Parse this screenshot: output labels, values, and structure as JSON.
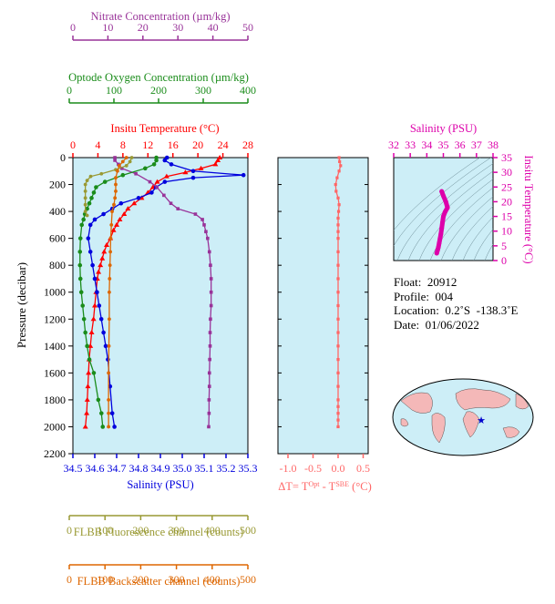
{
  "colors": {
    "nitrate": "#993399",
    "oxygen": "#1a8c1a",
    "temperature": "#ff0000",
    "salinity": "#0000dd",
    "fluorescence": "#999933",
    "backscatter": "#dd6600",
    "delta_t": "#ff6666",
    "ts_salinity": "#dd00aa",
    "panel_bg": "#cdeef7"
  },
  "chart_data": [
    {
      "type": "line",
      "title": "",
      "ylabel": "Pressure (decibar)",
      "y_ticks": [
        "0",
        "200",
        "400",
        "600",
        "800",
        "1000",
        "1200",
        "1400",
        "1600",
        "1800",
        "2000",
        "2200"
      ],
      "ylim": [
        2200,
        0
      ],
      "axes": [
        {
          "key": "nitrate",
          "label": "Nitrate Concentration (µm/kg)",
          "range": [
            0,
            50
          ],
          "ticks": [
            "0",
            "10",
            "20",
            "30",
            "40",
            "50"
          ]
        },
        {
          "key": "oxygen",
          "label": "Optode Oxygen Concentration (µm/kg)",
          "range": [
            0,
            400
          ],
          "ticks": [
            "0",
            "100",
            "200",
            "300",
            "400"
          ]
        },
        {
          "key": "temperature",
          "label": "Insitu Temperature (°C)",
          "range": [
            0,
            28
          ],
          "ticks": [
            "0",
            "4",
            "8",
            "12",
            "16",
            "20",
            "24",
            "28"
          ]
        },
        {
          "key": "salinity",
          "label": "Salinity (PSU)",
          "range": [
            34.5,
            35.3
          ],
          "ticks": [
            "34.5",
            "34.6",
            "34.7",
            "34.8",
            "34.9",
            "35.0",
            "35.1",
            "35.2",
            "35.3"
          ]
        },
        {
          "key": "fluorescence",
          "label": "FLBB Fluorescence channel (counts)",
          "range": [
            0,
            500
          ],
          "ticks": [
            "0",
            "100",
            "200",
            "300",
            "400",
            "500"
          ]
        },
        {
          "key": "backscatter",
          "label": "FLBB Backscatter channel (counts)",
          "range": [
            0,
            500
          ],
          "ticks": [
            "0",
            "100",
            "200",
            "300",
            "400",
            "500"
          ]
        }
      ],
      "series": [
        {
          "key": "temperature",
          "x": [
            23.5,
            23.2,
            22.8,
            20.5,
            18.0,
            15.0,
            13.5,
            12.8,
            12.0,
            11.0,
            9.8,
            8.8,
            8.2,
            7.5,
            7.0,
            6.5,
            6.0,
            5.4,
            5.0,
            4.7,
            4.4,
            4.1,
            3.9,
            3.7,
            3.5,
            3.3,
            3.0,
            2.8,
            2.6,
            2.5,
            2.4,
            2.3,
            2.2,
            2.0
          ],
          "y": [
            0,
            20,
            50,
            80,
            110,
            140,
            180,
            220,
            260,
            300,
            340,
            380,
            420,
            460,
            500,
            540,
            600,
            650,
            700,
            750,
            800,
            850,
            900,
            1000,
            1100,
            1200,
            1300,
            1400,
            1500,
            1600,
            1700,
            1800,
            1900,
            2000
          ]
        },
        {
          "key": "salinity",
          "x": [
            34.93,
            34.92,
            34.95,
            35.05,
            35.28,
            35.05,
            34.92,
            34.88,
            34.86,
            34.8,
            34.72,
            34.68,
            34.64,
            34.6,
            34.58,
            34.57,
            34.58,
            34.59,
            34.6,
            34.61,
            34.62,
            34.63,
            34.64,
            34.65,
            34.66,
            34.67,
            34.68,
            34.69
          ],
          "y": [
            0,
            20,
            50,
            100,
            130,
            150,
            180,
            220,
            260,
            300,
            340,
            380,
            420,
            460,
            500,
            600,
            700,
            800,
            900,
            1000,
            1100,
            1200,
            1300,
            1400,
            1500,
            1700,
            1900,
            2000
          ]
        },
        {
          "key": "nitrate",
          "x": [
            12,
            12,
            13,
            14,
            18,
            22,
            24,
            26,
            28,
            30,
            35,
            37,
            37.5,
            38,
            38.5,
            39,
            39.3,
            39.5,
            39.5,
            39.5,
            39.3,
            39.2,
            39.2,
            39.1,
            39.0,
            39.0,
            38.9,
            38.9,
            38.8
          ],
          "y": [
            0,
            20,
            50,
            80,
            120,
            180,
            220,
            280,
            340,
            380,
            420,
            460,
            500,
            550,
            600,
            700,
            800,
            900,
            1000,
            1100,
            1200,
            1300,
            1400,
            1500,
            1600,
            1700,
            1800,
            1900,
            2000
          ]
        },
        {
          "key": "oxygen",
          "x": [
            195,
            195,
            190,
            170,
            120,
            80,
            60,
            55,
            50,
            45,
            40,
            35,
            32,
            28,
            25,
            24,
            24,
            25,
            27,
            30,
            33,
            36,
            40,
            45,
            55,
            65,
            72,
            75
          ],
          "y": [
            0,
            20,
            50,
            80,
            130,
            180,
            220,
            260,
            300,
            340,
            380,
            420,
            460,
            500,
            600,
            700,
            800,
            900,
            1000,
            1100,
            1200,
            1300,
            1400,
            1500,
            1600,
            1800,
            1900,
            2000
          ]
        },
        {
          "key": "fluorescence",
          "x": [
            175,
            170,
            160,
            130,
            90,
            60,
            50,
            45,
            45,
            45,
            45,
            45,
            50
          ],
          "y": [
            0,
            30,
            60,
            90,
            120,
            140,
            170,
            200,
            250,
            300,
            350,
            400,
            430
          ]
        },
        {
          "key": "backscatter",
          "x": [
            160,
            150,
            140,
            135,
            130,
            130,
            130,
            128,
            125,
            120,
            118,
            116,
            115,
            114,
            113,
            112,
            112,
            111,
            110,
            110,
            110,
            110
          ],
          "y": [
            0,
            30,
            60,
            100,
            150,
            200,
            250,
            300,
            350,
            400,
            500,
            600,
            700,
            800,
            900,
            1000,
            1200,
            1400,
            1600,
            1800,
            1900,
            2000
          ]
        }
      ]
    },
    {
      "type": "line",
      "title": "",
      "xlabel": "ΔT= T^Opt - T^SBE (°C)",
      "x_ticks": [
        "-1.0",
        "-0.5",
        "0.0",
        "0.5"
      ],
      "xlim": [
        -1.2,
        0.6
      ],
      "ylim": [
        2200,
        0
      ],
      "series": [
        {
          "key": "delta_t",
          "x": [
            0.02,
            0.03,
            0.05,
            0.02,
            -0.02,
            -0.05,
            -0.04,
            0.0,
            0.02,
            0.01,
            0.0,
            0.0,
            0.0,
            0.0,
            0.0,
            0.0,
            0.0,
            0.0,
            0.0,
            0.0,
            0.0,
            0.0,
            0.0,
            0.0,
            0.0,
            0.0,
            0.0,
            0.0,
            0.0,
            0.0
          ],
          "y": [
            0,
            30,
            60,
            100,
            150,
            200,
            250,
            300,
            350,
            400,
            450,
            500,
            550,
            600,
            700,
            800,
            900,
            1000,
            1100,
            1200,
            1300,
            1400,
            1500,
            1600,
            1700,
            1800,
            1850,
            1900,
            1950,
            2000
          ]
        }
      ]
    },
    {
      "type": "line",
      "title": "",
      "xlabel": "Salinity (PSU)",
      "ylabel": "Insitu Temperature (°C)",
      "x_ticks": [
        "32",
        "33",
        "34",
        "35",
        "36",
        "37",
        "38"
      ],
      "y_ticks": [
        "0",
        "5",
        "10",
        "15",
        "20",
        "25",
        "30",
        "35"
      ],
      "xlim": [
        32,
        38
      ],
      "ylim": [
        0,
        35
      ],
      "series": [
        {
          "key": "ts_salinity",
          "x": [
            34.9,
            35.0,
            35.15,
            35.25,
            35.1,
            35.0,
            34.95,
            34.9,
            34.85,
            34.8,
            34.75,
            34.7,
            34.65,
            34.6
          ],
          "y": [
            23.5,
            22,
            20,
            18,
            16.5,
            15,
            13,
            11,
            9,
            7.5,
            6,
            4.5,
            3.5,
            2.5
          ]
        }
      ]
    }
  ],
  "float_info": {
    "float": "Float:  20912",
    "profile": "Profile:  004",
    "location": "Location:  0.2˚S  -138.3˚E",
    "date": "Date:  01/06/2022"
  }
}
